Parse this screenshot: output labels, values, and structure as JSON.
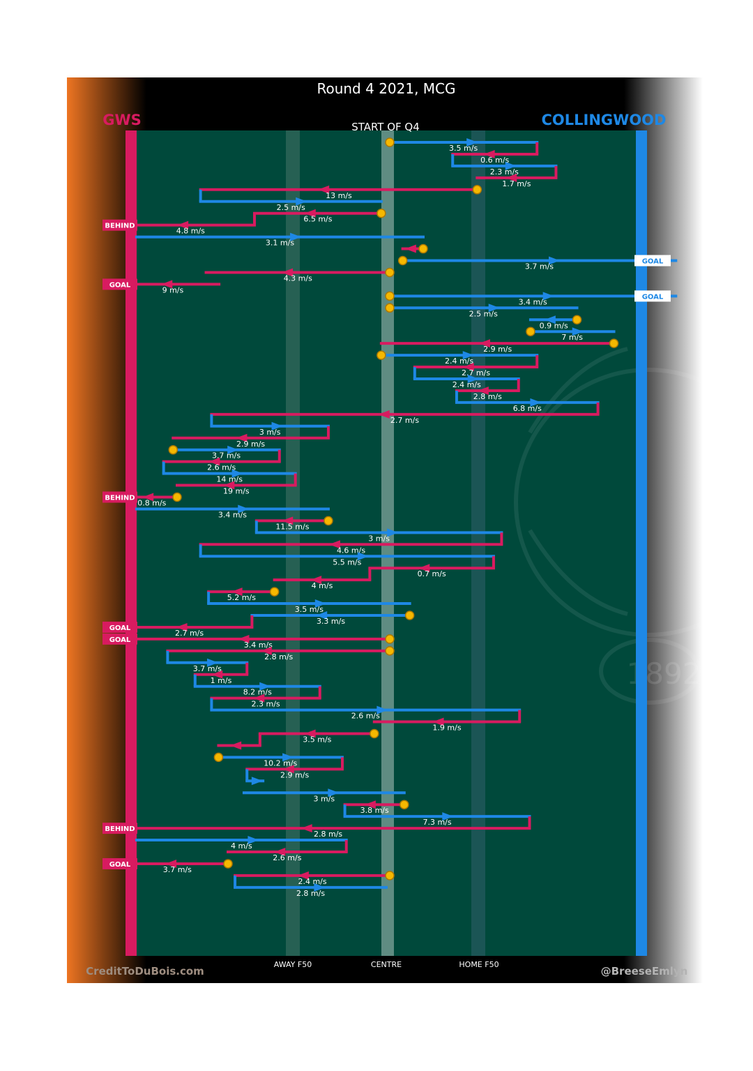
{
  "colors": {
    "gws": "#d81b60",
    "collingwood": "#1e88e5",
    "field": "#00493b",
    "ball_up": "#f5b800",
    "left_grad_start": "#ee7522",
    "left_grad_end": "#000000",
    "right_grad_start": "#000000",
    "right_grad_end": "#ffffff"
  },
  "title": "Round 4 2021, MCG",
  "subtitle": "START OF Q4",
  "teams": {
    "left": "GWS",
    "right": "COLLINGWOOD"
  },
  "footer": {
    "left": "CreditToDuBois.com",
    "right": "@BreeseEmlyn"
  },
  "axis_labels": [
    "AWAY F50",
    "CENTRE",
    "HOME F50"
  ],
  "outcome_labels": {
    "goal": "GOAL",
    "behind": "BEHIND"
  },
  "watermark": "1892",
  "chart_data": {
    "type": "line",
    "x_axis": "field position",
    "x_categories": [
      "AWAY F50",
      "CENTRE",
      "HOME F50"
    ],
    "chains": [
      {
        "t": "c",
        "x": [
          0.507,
          0.802
        ],
        "s": "3.5 m/s",
        "b": 1
      },
      {
        "t": "g",
        "x": [
          0.802,
          0.633
        ],
        "s": "0.6 m/s"
      },
      {
        "t": "c",
        "x": [
          0.633,
          0.84
        ],
        "s": "2.3 m/s"
      },
      {
        "t": "g",
        "x": [
          0.84,
          0.682
        ],
        "s": "1.7 m/s"
      },
      {
        "t": "g",
        "x": [
          0.682,
          0.128
        ],
        "s": "13 m/s",
        "b": 1
      },
      {
        "t": "c",
        "x": [
          0.128,
          0.49
        ],
        "s": "2.5 m/s"
      },
      {
        "t": "g",
        "x": [
          0.49,
          0.236
        ],
        "s": "6.5 m/s",
        "b": 1
      },
      {
        "t": "g",
        "x": [
          0.236,
          -0.02
        ],
        "s": "4.8 m/s",
        "stair": [
          [
            0.183,
            318
          ],
          [
            0.236,
            335
          ]
        ],
        "o": "BEHIND"
      },
      {
        "t": "c",
        "x": [
          0.0,
          0.574
        ],
        "s": "3.1 m/s"
      },
      {
        "t": "g",
        "x": [
          0.574,
          0.533
        ],
        "s": "",
        "b": 1
      },
      {
        "t": "c",
        "x": [
          0.533,
          1.08
        ],
        "s": "3.7 m/s",
        "b": 1,
        "o": "GOAL"
      },
      {
        "t": "g",
        "x": [
          0.507,
          0.139
        ],
        "s": "4.3 m/s",
        "b": 1
      },
      {
        "t": "g",
        "x": [
          0.165,
          -0.02
        ],
        "s": "9 m/s",
        "o": "GOAL"
      },
      {
        "t": "c",
        "x": [
          0.507,
          1.08
        ],
        "s": "3.4 m/s",
        "b": 1,
        "o": "GOAL"
      },
      {
        "t": "c",
        "x": [
          0.507,
          0.882
        ],
        "s": "2.5 m/s",
        "b": 1
      },
      {
        "t": "c",
        "x": [
          0.882,
          0.789
        ],
        "s": "0.9 m/s",
        "b": 1
      },
      {
        "t": "c",
        "x": [
          0.789,
          0.956
        ],
        "s": "7 m/s",
        "b": 1
      },
      {
        "t": "g",
        "x": [
          0.956,
          0.49
        ],
        "s": "2.9 m/s",
        "b": 1
      },
      {
        "t": "c",
        "x": [
          0.49,
          0.802
        ],
        "s": "2.4 m/s",
        "b": 1
      },
      {
        "t": "g",
        "x": [
          0.802,
          0.557
        ],
        "s": "2.7 m/s"
      },
      {
        "t": "c",
        "x": [
          0.557,
          0.765
        ],
        "s": "2.4 m/s"
      },
      {
        "t": "g",
        "x": [
          0.765,
          0.641
        ],
        "s": "2.8 m/s"
      },
      {
        "t": "c",
        "x": [
          0.641,
          0.924
        ],
        "s": "6.8 m/s"
      },
      {
        "t": "g",
        "x": [
          0.924,
          0.15
        ],
        "s": "2.7 m/s"
      },
      {
        "t": "c",
        "x": [
          0.15,
          0.384
        ],
        "s": "3 m/s"
      },
      {
        "t": "g",
        "x": [
          0.384,
          0.073
        ],
        "s": "2.9 m/s"
      },
      {
        "t": "c",
        "x": [
          0.073,
          0.286
        ],
        "s": "3.7 m/s",
        "b": 1
      },
      {
        "t": "g",
        "x": [
          0.286,
          0.054
        ],
        "s": "2.6 m/s"
      },
      {
        "t": "c",
        "x": [
          0.054,
          0.318
        ],
        "s": "14 m/s"
      },
      {
        "t": "g",
        "x": [
          0.318,
          0.081
        ],
        "s": "19 m/s"
      },
      {
        "t": "g",
        "x": [
          0.081,
          -0.02
        ],
        "s": "0.8 m/s",
        "b": 1,
        "o": "BEHIND"
      },
      {
        "t": "c",
        "x": [
          0.0,
          0.384
        ],
        "s": "3.4 m/s"
      },
      {
        "t": "g",
        "x": [
          0.384,
          0.24
        ],
        "s": "11.5 m/s",
        "b": 1
      },
      {
        "t": "c",
        "x": [
          0.24,
          0.731
        ],
        "s": "3 m/s"
      },
      {
        "t": "g",
        "x": [
          0.731,
          0.128
        ],
        "s": "4.6 m/s"
      },
      {
        "t": "c",
        "x": [
          0.128,
          0.715
        ],
        "s": "5.5 m/s"
      },
      {
        "t": "g",
        "x": [
          0.715,
          0.467
        ],
        "s": "0.7 m/s"
      },
      {
        "t": "g",
        "x": [
          0.467,
          0.276
        ],
        "s": "4 m/s",
        "stair": [
          [
            0.467,
            862
          ]
        ]
      },
      {
        "t": "g",
        "x": [
          0.276,
          0.144
        ],
        "s": "5.2 m/s",
        "b": 1
      },
      {
        "t": "c",
        "x": [
          0.144,
          0.547
        ],
        "s": "3.5 m/s"
      },
      {
        "t": "c",
        "x": [
          0.547,
          0.231
        ],
        "s": "3.3 m/s",
        "b": 1
      },
      {
        "t": "g",
        "x": [
          0.231,
          -0.02
        ],
        "s": "2.7 m/s",
        "o": "GOAL"
      },
      {
        "t": "g",
        "x": [
          0.507,
          -0.02
        ],
        "s": "3.4 m/s",
        "b": 1,
        "o": "GOAL"
      },
      {
        "t": "g",
        "x": [
          0.507,
          0.062
        ],
        "s": "2.8 m/s",
        "b": 1
      },
      {
        "t": "c",
        "x": [
          0.062,
          0.221
        ],
        "s": "3.7 m/s"
      },
      {
        "t": "g",
        "x": [
          0.221,
          0.117
        ],
        "s": "1 m/s"
      },
      {
        "t": "c",
        "x": [
          0.117,
          0.367
        ],
        "s": "8.2 m/s"
      },
      {
        "t": "g",
        "x": [
          0.367,
          0.15
        ],
        "s": "2.3 m/s"
      },
      {
        "t": "c",
        "x": [
          0.15,
          0.767
        ],
        "s": "2.6 m/s"
      },
      {
        "t": "g",
        "x": [
          0.767,
          0.476
        ],
        "s": "1.9 m/s"
      },
      {
        "t": "g",
        "x": [
          0.476,
          0.247
        ],
        "s": "3.5 m/s",
        "b": 1
      },
      {
        "t": "g",
        "x": [
          0.247,
          0.164
        ],
        "s": "",
        "stair": [
          [
            0.218,
            1116
          ],
          [
            0.164,
            1133
          ]
        ]
      },
      {
        "t": "c",
        "x": [
          0.164,
          0.412
        ],
        "s": "10.2 m/s",
        "b": 1
      },
      {
        "t": "g",
        "x": [
          0.412,
          0.221
        ],
        "s": "2.9 m/s"
      },
      {
        "t": "c",
        "x": [
          0.221,
          0.253
        ],
        "s": ""
      },
      {
        "t": "c",
        "x": [
          0.215,
          0.536
        ],
        "s": "3 m/s",
        "stair": [
          [
            0.215,
            1200
          ]
        ]
      },
      {
        "t": "g",
        "x": [
          0.536,
          0.417
        ],
        "s": "3.8 m/s",
        "b": 1
      },
      {
        "t": "c",
        "x": [
          0.417,
          0.787
        ],
        "s": "7.3 m/s"
      },
      {
        "t": "g",
        "x": [
          0.787,
          -0.02
        ],
        "s": "2.8 m/s",
        "o": "BEHIND"
      },
      {
        "t": "c",
        "x": [
          0.0,
          0.42
        ],
        "s": "4 m/s"
      },
      {
        "t": "g",
        "x": [
          0.42,
          0.183
        ],
        "s": "2.6 m/s"
      },
      {
        "t": "g",
        "x": [
          0.183,
          -0.02
        ],
        "s": "3.7 m/s",
        "b": 1,
        "o": "GOAL"
      },
      {
        "t": "g",
        "x": [
          0.507,
          0.197
        ],
        "s": "2.4 m/s",
        "b": 1
      },
      {
        "t": "c",
        "x": [
          0.197,
          0.5
        ],
        "s": "2.8 m/s"
      }
    ]
  }
}
